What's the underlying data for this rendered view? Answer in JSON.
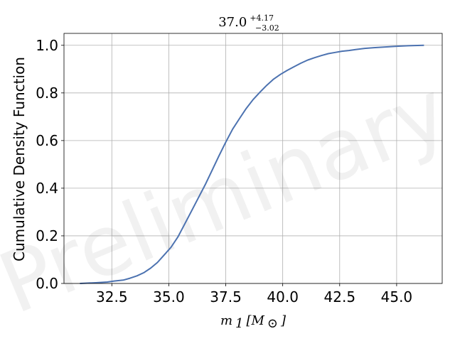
{
  "chart_data": {
    "type": "line",
    "title": {
      "value": "37.0",
      "upper": "+4.17",
      "lower": "−3.02"
    },
    "xlabel": {
      "symbol": "m",
      "subscript": "1",
      "unit": "[M",
      "unit_sub": "⊙",
      "unit_close": "]"
    },
    "ylabel": "Cumulative Density Function",
    "xlim": [
      30.4,
      47.0
    ],
    "ylim": [
      0.0,
      1.05
    ],
    "xticks": [
      32.5,
      35.0,
      37.5,
      40.0,
      42.5,
      45.0
    ],
    "xtick_labels": [
      "32.5",
      "35.0",
      "37.5",
      "40.0",
      "42.5",
      "45.0"
    ],
    "yticks": [
      0.0,
      0.2,
      0.4,
      0.6,
      0.8,
      1.0
    ],
    "ytick_labels": [
      "0.0",
      "0.2",
      "0.4",
      "0.6",
      "0.8",
      "1.0"
    ],
    "grid": true,
    "watermark": "Preliminary",
    "series": [
      {
        "color": "#4c72b0",
        "x": [
          31.1,
          31.8,
          32.3,
          32.6,
          33.0,
          33.3,
          33.6,
          33.9,
          34.2,
          34.5,
          34.8,
          35.1,
          35.4,
          35.7,
          36.0,
          36.3,
          36.6,
          36.9,
          37.2,
          37.5,
          37.8,
          38.1,
          38.4,
          38.7,
          39.0,
          39.3,
          39.6,
          39.9,
          40.2,
          40.5,
          40.8,
          41.1,
          41.4,
          41.7,
          42.0,
          42.3,
          42.6,
          42.9,
          43.2,
          43.6,
          44.0,
          44.5,
          45.0,
          45.5,
          46.2
        ],
        "y": [
          0.0,
          0.003,
          0.006,
          0.01,
          0.014,
          0.022,
          0.032,
          0.045,
          0.064,
          0.088,
          0.12,
          0.152,
          0.195,
          0.25,
          0.305,
          0.36,
          0.415,
          0.475,
          0.535,
          0.593,
          0.648,
          0.692,
          0.735,
          0.772,
          0.803,
          0.832,
          0.858,
          0.878,
          0.895,
          0.91,
          0.925,
          0.938,
          0.948,
          0.957,
          0.965,
          0.97,
          0.975,
          0.978,
          0.982,
          0.987,
          0.99,
          0.993,
          0.996,
          0.998,
          1.0
        ]
      }
    ]
  }
}
